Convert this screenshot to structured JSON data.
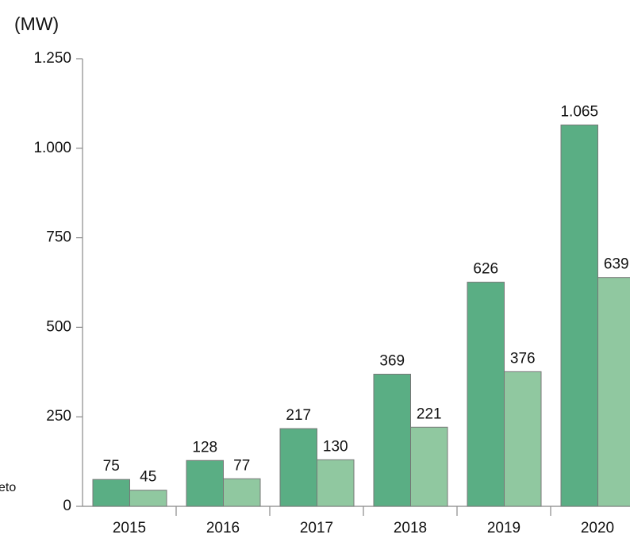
{
  "chart_data": {
    "type": "bar",
    "y_label": "(MW)",
    "annotation": "eto",
    "categories": [
      "2015",
      "2016",
      "2017",
      "2018",
      "2019",
      "2020"
    ],
    "series": [
      {
        "color": "#5aae84",
        "values": [
          75,
          128,
          217,
          369,
          626,
          1065
        ],
        "value_labels": [
          "75",
          "128",
          "217",
          "369",
          "626",
          "1.065"
        ]
      },
      {
        "color": "#90c8a0",
        "values": [
          45,
          77,
          130,
          221,
          376,
          639
        ]
      }
    ],
    "ylim": [
      0,
      1250
    ],
    "yticks": [
      0,
      250,
      500,
      750,
      {
        "value": 1000,
        "label": "1.000"
      },
      {
        "value": 1250,
        "label": "1.250"
      }
    ]
  }
}
